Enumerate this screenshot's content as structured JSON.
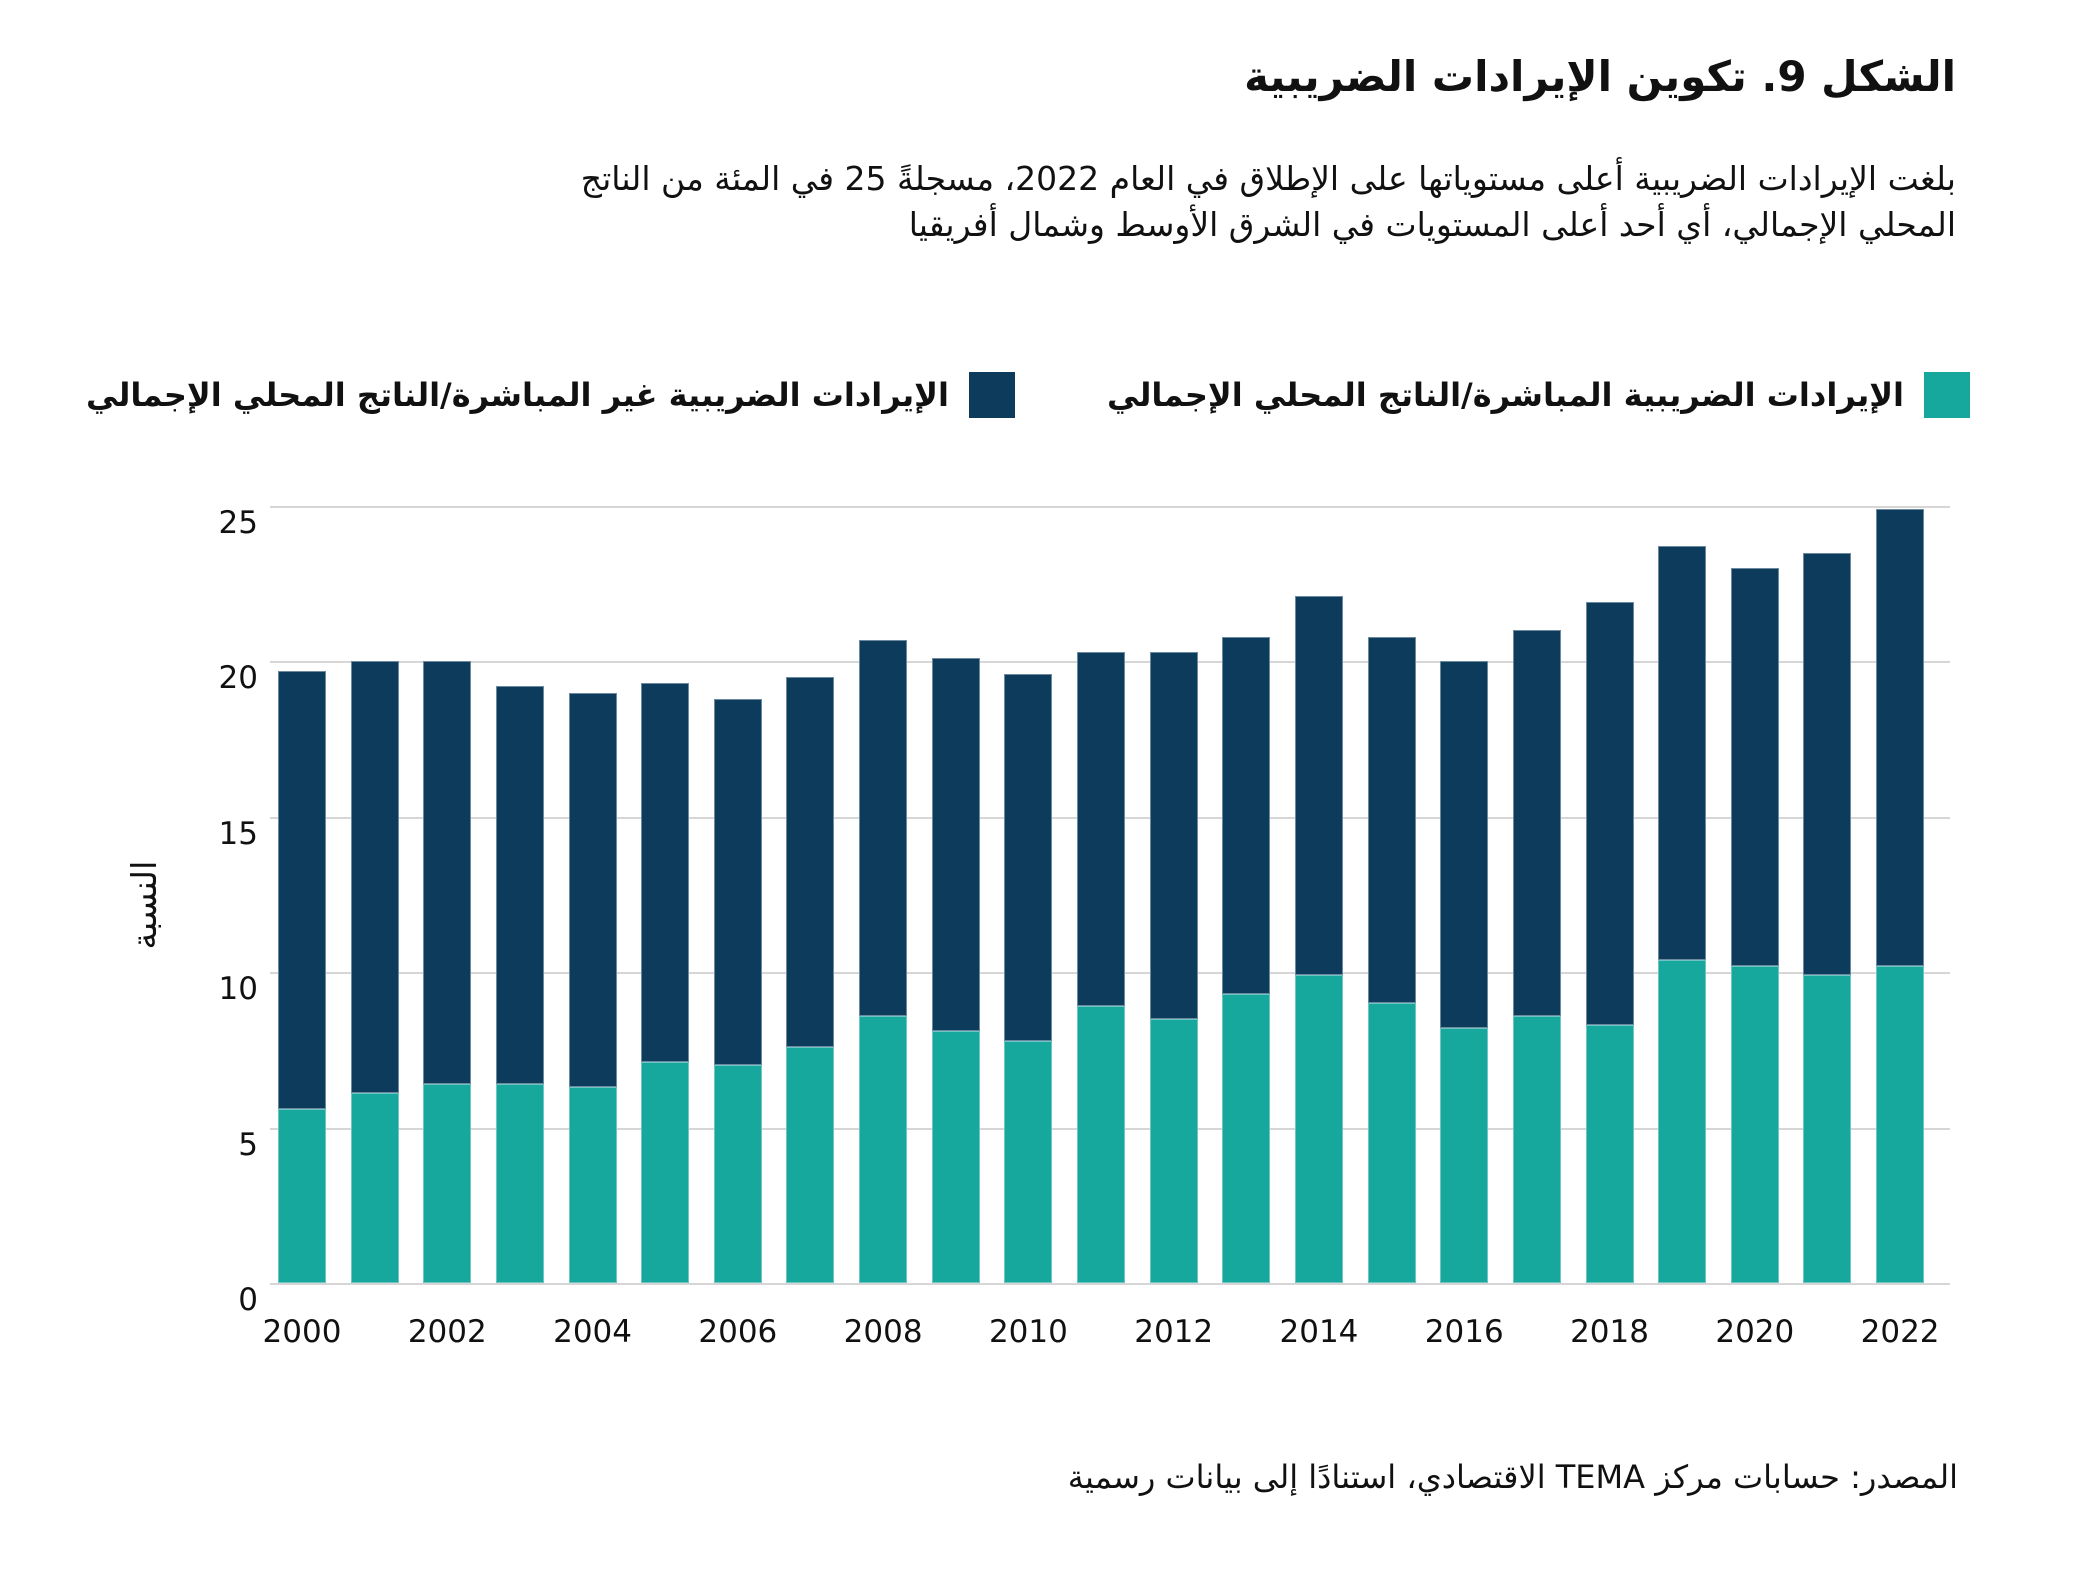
{
  "figure": {
    "title": "الشكل 9. تكوين الإيرادات الضريبية",
    "subtitle_line1": "بلغت الإيرادات الضريبية أعلى مستوياتها على الإطلاق في العام 2022، مسجلةً 25 في المئة من الناتج",
    "subtitle_line2": "المحلي الإجمالي، أي أحد أعلى المستويات في الشرق الأوسط وشمال أفريقيا",
    "source": "المصدر: حسابات مركز TEMA الاقتصادي، استنادًا إلى بيانات رسمية"
  },
  "colors": {
    "direct": "#16a79d",
    "indirect": "#0d3b5c",
    "gridline": "#d6d6d6",
    "text": "#111111"
  },
  "chart_data": {
    "type": "bar",
    "stacked": true,
    "ylabel": "النسبة",
    "ylim": [
      0,
      25
    ],
    "yticks": [
      0,
      5,
      10,
      15,
      20,
      25
    ],
    "grid": true,
    "legend_position": "top",
    "categories": [
      "2000",
      "2001",
      "2002",
      "2003",
      "2004",
      "2005",
      "2006",
      "2007",
      "2008",
      "2009",
      "2010",
      "2011",
      "2012",
      "2013",
      "2014",
      "2015",
      "2016",
      "2017",
      "2018",
      "2019",
      "2020",
      "2021",
      "2022"
    ],
    "x_tick_labels": [
      "2000",
      "2002",
      "2004",
      "2006",
      "2008",
      "2010",
      "2012",
      "2014",
      "2016",
      "2018",
      "2020",
      "2022"
    ],
    "series": [
      {
        "name": "الإيرادات الضريبية المباشرة/الناتج المحلي الإجمالي",
        "color_key": "direct",
        "values": [
          5.6,
          6.1,
          6.4,
          6.4,
          6.3,
          7.1,
          7.0,
          7.6,
          8.6,
          8.1,
          7.8,
          8.9,
          8.5,
          9.3,
          9.9,
          9.0,
          8.2,
          8.6,
          8.3,
          10.4,
          10.2,
          9.9,
          10.2
        ]
      },
      {
        "name": "الإيرادات الضريبية غير المباشرة/الناتج المحلي الإجمالي",
        "color_key": "indirect",
        "values": [
          14.1,
          13.9,
          13.6,
          12.8,
          12.7,
          12.2,
          11.8,
          11.9,
          12.1,
          12.0,
          11.8,
          11.4,
          11.8,
          11.5,
          12.2,
          11.8,
          11.8,
          12.4,
          13.6,
          13.3,
          12.8,
          13.6,
          14.7
        ]
      }
    ],
    "totals": [
      19.7,
      20.0,
      20.0,
      19.2,
      19.0,
      19.3,
      18.8,
      19.5,
      20.7,
      20.1,
      19.6,
      20.3,
      20.3,
      20.8,
      22.1,
      20.8,
      20.0,
      21.0,
      21.9,
      23.7,
      23.0,
      23.5,
      24.9
    ]
  }
}
